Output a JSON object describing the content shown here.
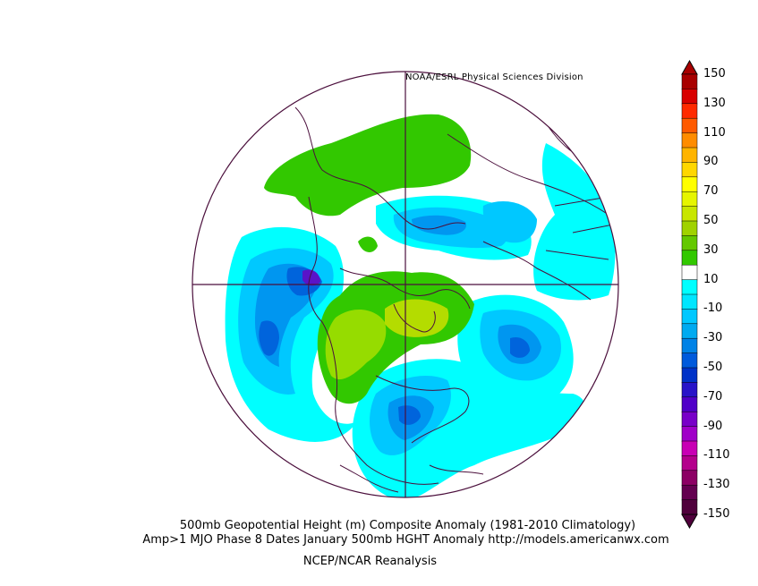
{
  "credit": "NOAA/ESRL Physical Sciences Division",
  "caption": {
    "line1": "500mb Geopotential Height (m) Composite Anomaly (1981-2010 Climatology)",
    "line2": "Amp>1 MJO Phase 8 Dates January 500mb HGHT Anomaly http://models.americanwx.com",
    "line3": "NCEP/NCAR Reanalysis"
  },
  "colorbar": {
    "labels": [
      "150",
      "130",
      "110",
      "90",
      "70",
      "50",
      "30",
      "10",
      "-10",
      "-30",
      "-50",
      "-70",
      "-90",
      "-110",
      "-130",
      "-150"
    ],
    "colors": [
      "#a80000",
      "#d80000",
      "#ff2a00",
      "#ff5a00",
      "#ff8c00",
      "#ffb400",
      "#ffd700",
      "#ffff00",
      "#e6f500",
      "#c8e600",
      "#a0d200",
      "#64c800",
      "#32c800",
      "#ffffff",
      "#00ffff",
      "#00e6ff",
      "#00c8ff",
      "#00aaf0",
      "#0082e6",
      "#005adc",
      "#0032c8",
      "#2814c8",
      "#5000c8",
      "#7800c8",
      "#a000c8",
      "#c800b4",
      "#b4008c",
      "#8c0064",
      "#640050",
      "#50003c"
    ],
    "top_color": "#a80000",
    "bottom_color": "#50003c"
  },
  "map_colors": {
    "outline": "#4b0f3c",
    "cyan": "#00ffff",
    "blue1": "#00c8ff",
    "blue2": "#0096f0",
    "blue3": "#0064dc",
    "blue4": "#1e3cd2",
    "purple": "#5a14c8",
    "green": "#32c800",
    "lime": "#96dc00",
    "olive": "#b4dc00"
  }
}
